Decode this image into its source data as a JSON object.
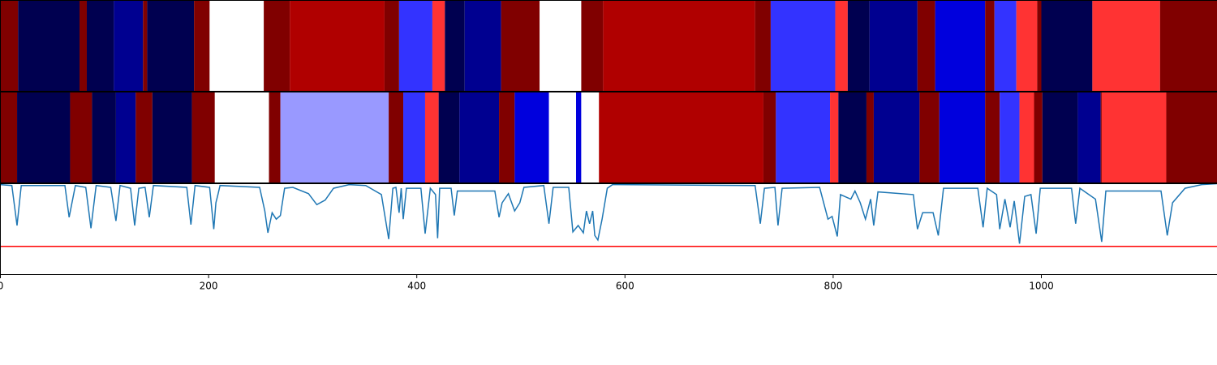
{
  "chart_data": {
    "type": "segment_rows",
    "palette": [
      "#000050",
      "#000090",
      "#0000dd",
      "#3333ff",
      "#9999ff",
      "#ffffff",
      "#ff3333",
      "#b00000",
      "#800000"
    ],
    "rows": [
      {
        "edges": [
          0,
          17,
          76,
          83,
          109,
          137,
          141,
          186,
          201,
          253,
          278,
          369,
          383,
          415,
          427,
          446,
          481,
          518,
          558,
          579,
          725,
          740,
          802,
          814,
          835,
          881,
          898,
          946,
          955,
          976,
          996,
          1000,
          1049,
          1114,
          1169
        ],
        "classes": [
          8,
          0,
          8,
          0,
          1,
          8,
          0,
          8,
          5,
          8,
          7,
          8,
          3,
          6,
          0,
          1,
          8,
          5,
          8,
          7,
          8,
          3,
          6,
          0,
          1,
          8,
          2,
          8,
          3,
          6,
          8,
          0,
          6,
          8
        ]
      },
      {
        "edges": [
          0,
          16,
          67,
          88,
          111,
          130,
          146,
          184,
          206,
          258,
          269,
          373,
          387,
          408,
          421,
          441,
          479,
          494,
          527,
          553,
          558,
          575,
          733,
          745,
          797,
          805,
          832,
          839,
          883,
          902,
          946,
          960,
          979,
          993,
          1001,
          1035,
          1057,
          1058,
          1120,
          1169
        ],
        "classes": [
          8,
          0,
          8,
          0,
          1,
          8,
          0,
          8,
          5,
          8,
          4,
          8,
          3,
          6,
          0,
          1,
          8,
          2,
          5,
          2,
          5,
          7,
          8,
          3,
          6,
          0,
          8,
          1,
          8,
          2,
          8,
          3,
          6,
          8,
          0,
          1,
          8,
          6,
          8
        ]
      }
    ],
    "line": {
      "color": "#1f77b4",
      "x": [
        0,
        11,
        16,
        20,
        62,
        66,
        72,
        82,
        87,
        92,
        106,
        111,
        115,
        125,
        129,
        133,
        139,
        143,
        147,
        179,
        183,
        187,
        201,
        205,
        207,
        209,
        211,
        249,
        254,
        257,
        261,
        265,
        269,
        273,
        281,
        296,
        304,
        312,
        320,
        335,
        351,
        366,
        373,
        377,
        380,
        383,
        385,
        387,
        390,
        404,
        408,
        413,
        418,
        420,
        422,
        433,
        436,
        439,
        475,
        479,
        482,
        488,
        494,
        499,
        503,
        522,
        527,
        531,
        546,
        550,
        555,
        560,
        563,
        566,
        569,
        571,
        574,
        578,
        583,
        588,
        725,
        730,
        734,
        744,
        747,
        751,
        787,
        795,
        799,
        804,
        807,
        817,
        821,
        826,
        831,
        836,
        839,
        843,
        877,
        881,
        886,
        896,
        901,
        906,
        939,
        944,
        948,
        957,
        960,
        965,
        970,
        974,
        979,
        984,
        990,
        995,
        999,
        1029,
        1033,
        1037,
        1052,
        1058,
        1062,
        1115,
        1121,
        1126,
        1138,
        1154,
        1169
      ],
      "values": [
        0.99,
        0.98,
        0.54,
        0.98,
        0.98,
        0.63,
        0.98,
        0.96,
        0.51,
        0.98,
        0.96,
        0.59,
        0.98,
        0.95,
        0.54,
        0.95,
        0.96,
        0.63,
        0.98,
        0.96,
        0.55,
        0.98,
        0.96,
        0.5,
        0.79,
        0.88,
        0.98,
        0.96,
        0.7,
        0.46,
        0.68,
        0.61,
        0.65,
        0.95,
        0.96,
        0.89,
        0.77,
        0.82,
        0.95,
        0.99,
        0.98,
        0.88,
        0.39,
        0.95,
        0.96,
        0.68,
        0.95,
        0.61,
        0.95,
        0.95,
        0.45,
        0.95,
        0.88,
        0.4,
        0.95,
        0.95,
        0.65,
        0.92,
        0.92,
        0.63,
        0.79,
        0.89,
        0.7,
        0.79,
        0.96,
        0.98,
        0.56,
        0.96,
        0.96,
        0.47,
        0.54,
        0.46,
        0.7,
        0.56,
        0.7,
        0.43,
        0.38,
        0.61,
        0.95,
        0.99,
        0.98,
        0.56,
        0.95,
        0.96,
        0.54,
        0.95,
        0.96,
        0.61,
        0.64,
        0.42,
        0.88,
        0.83,
        0.92,
        0.79,
        0.61,
        0.83,
        0.54,
        0.91,
        0.88,
        0.5,
        0.68,
        0.68,
        0.43,
        0.95,
        0.95,
        0.52,
        0.95,
        0.88,
        0.5,
        0.83,
        0.52,
        0.81,
        0.34,
        0.86,
        0.88,
        0.45,
        0.95,
        0.95,
        0.56,
        0.95,
        0.83,
        0.36,
        0.92,
        0.92,
        0.43,
        0.79,
        0.95,
        0.99,
        1.0
      ]
    },
    "threshold": {
      "value": 0.31,
      "color": "#ff0000"
    },
    "xlim": [
      0,
      1169
    ],
    "ylim": [
      0,
      1
    ],
    "xticks": [
      0,
      200,
      400,
      600,
      800,
      1000
    ]
  }
}
